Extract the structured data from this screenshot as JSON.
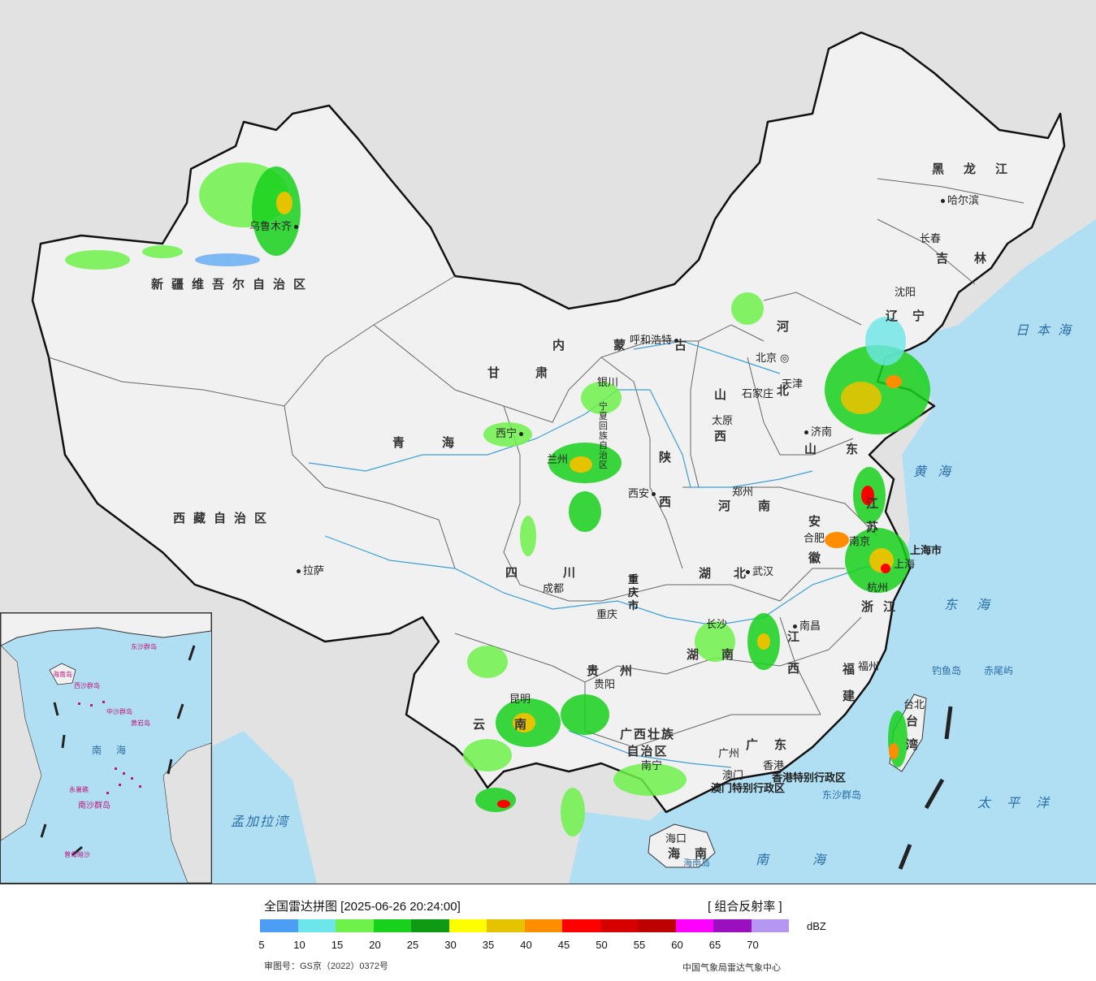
{
  "map": {
    "regions": [
      {
        "name": "新疆维吾尔自治区"
      },
      {
        "name": "西藏自治区"
      },
      {
        "name": "青海"
      },
      {
        "name": "甘肃"
      },
      {
        "name": "内蒙古"
      },
      {
        "name": "四川"
      },
      {
        "name": "云南"
      },
      {
        "name": "黑龙江"
      },
      {
        "name": "吉林"
      },
      {
        "name": "辽宁"
      },
      {
        "name": "河北"
      },
      {
        "name": "山西"
      },
      {
        "name": "陕西"
      },
      {
        "name": "河南"
      },
      {
        "name": "山东"
      },
      {
        "name": "江苏"
      },
      {
        "name": "安徽"
      },
      {
        "name": "浙江"
      },
      {
        "name": "湖北"
      },
      {
        "name": "湖南"
      },
      {
        "name": "江西"
      },
      {
        "name": "福建"
      },
      {
        "name": "贵州"
      },
      {
        "name": "广西壮族自治区"
      },
      {
        "name": "广东"
      },
      {
        "name": "海南"
      },
      {
        "name": "台湾"
      },
      {
        "name": "宁夏回族自治区"
      },
      {
        "name": "上海市"
      },
      {
        "name": "重庆市"
      },
      {
        "name": "香港特别行政区"
      },
      {
        "name": "澳门特别行政区"
      }
    ],
    "cities": [
      {
        "name": "乌鲁木齐"
      },
      {
        "name": "拉萨"
      },
      {
        "name": "西宁"
      },
      {
        "name": "兰州"
      },
      {
        "name": "银川"
      },
      {
        "name": "呼和浩特"
      },
      {
        "name": "北京"
      },
      {
        "name": "天津"
      },
      {
        "name": "石家庄"
      },
      {
        "name": "太原"
      },
      {
        "name": "济南"
      },
      {
        "name": "西安"
      },
      {
        "name": "郑州"
      },
      {
        "name": "合肥"
      },
      {
        "name": "南京"
      },
      {
        "name": "上海"
      },
      {
        "name": "杭州"
      },
      {
        "name": "武汉"
      },
      {
        "name": "成都"
      },
      {
        "name": "重庆"
      },
      {
        "name": "长沙"
      },
      {
        "name": "南昌"
      },
      {
        "name": "福州"
      },
      {
        "name": "台北"
      },
      {
        "name": "贵阳"
      },
      {
        "name": "昆明"
      },
      {
        "name": "南宁"
      },
      {
        "name": "广州"
      },
      {
        "name": "香港"
      },
      {
        "name": "澳门"
      },
      {
        "name": "海口"
      },
      {
        "name": "沈阳"
      },
      {
        "name": "长春"
      },
      {
        "name": "哈尔滨"
      }
    ],
    "seas": [
      "日本海",
      "黄海",
      "东海",
      "太平洋",
      "南海",
      "孟加拉湾"
    ],
    "islands": [
      "钓鱼岛",
      "赤尾屿",
      "东沙群岛",
      "海南岛"
    ],
    "inset_labels": [
      "东沙群岛",
      "西沙群岛",
      "中沙群岛",
      "黄岩岛",
      "南海",
      "南沙群岛",
      "永暑礁",
      "曾母暗沙",
      "海南岛"
    ]
  },
  "legend": {
    "title": "全国雷达拼图 [2025-06-26 20:24:00]",
    "product": "[ 组合反射率 ]",
    "unit": "dBZ",
    "colors": [
      "#4c9ef5",
      "#6de6e9",
      "#6ef14b",
      "#17d11c",
      "#0f9a15",
      "#ffff00",
      "#e6c300",
      "#ff8d00",
      "#ff0000",
      "#d60000",
      "#bd0000",
      "#ff00ff",
      "#9b0fbf",
      "#b596f0"
    ],
    "ticks": [
      "5",
      "10",
      "15",
      "20",
      "25",
      "30",
      "35",
      "40",
      "45",
      "50",
      "55",
      "60",
      "65",
      "70"
    ],
    "approval": "审图号：GS京（2022）0372号",
    "source": "中国气象局雷达气象中心"
  }
}
